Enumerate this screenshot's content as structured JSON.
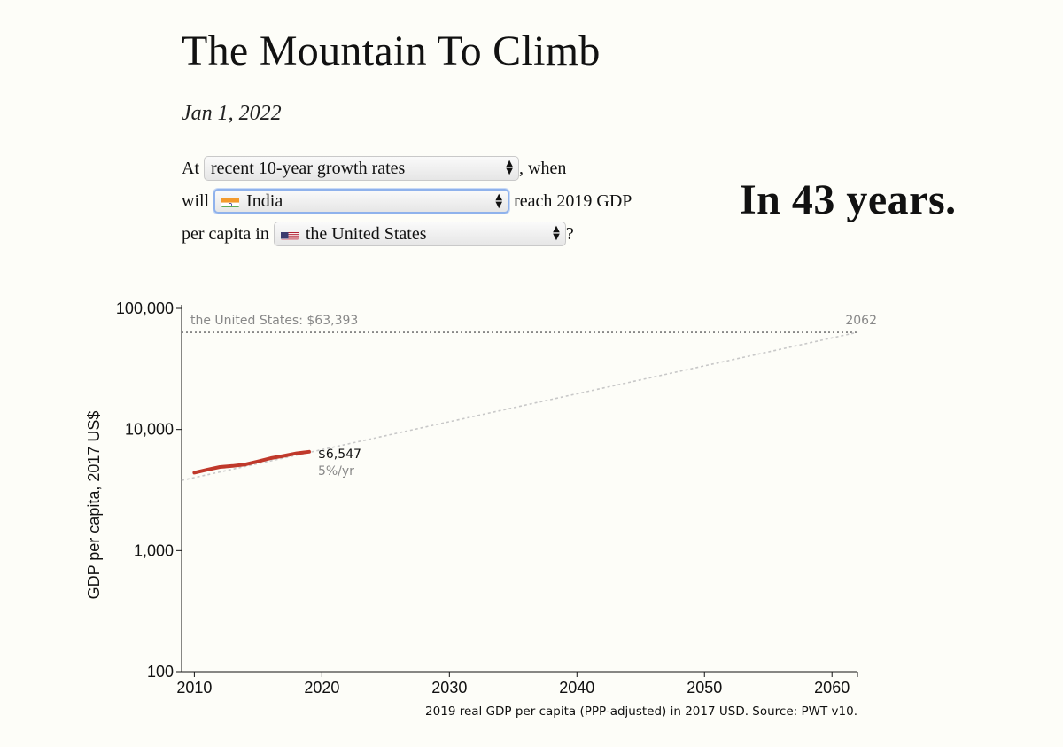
{
  "page": {
    "title": "The Mountain To Climb",
    "date": "Jan 1, 2022",
    "answer": "In 43 years."
  },
  "sentence": {
    "part1": "At",
    "part2": ", when",
    "part3": "will",
    "part4": "reach 2019 GDP",
    "part5": "per capita in",
    "part6": "?"
  },
  "controls": {
    "growth_select": {
      "value": "recent 10-year growth rates"
    },
    "country_select": {
      "value": "India",
      "flag_icon": "india-flag-icon"
    },
    "target_select": {
      "value": "the United States",
      "flag_icon": "us-flag-icon"
    }
  },
  "colors": {
    "background": "#fdfdf8",
    "history_line": "#c0392b",
    "projection_line": "#c8c8c8",
    "target_line": "#777777",
    "muted_text": "#888888",
    "focus_ring": "#8fb2ec"
  },
  "chart_data": {
    "type": "line",
    "y_scale": "log",
    "ylabel": "GDP per capita, 2017 US$",
    "xlabel": "",
    "xlim": [
      2009,
      2062
    ],
    "ylim": [
      100,
      100000
    ],
    "x_ticks": [
      2010,
      2020,
      2030,
      2040,
      2050,
      2060
    ],
    "x_tick_labels": [
      "2010",
      "2020",
      "2030",
      "2040",
      "2050",
      "2060"
    ],
    "y_ticks": [
      100,
      1000,
      10000,
      100000
    ],
    "y_tick_labels": [
      "100",
      "1,000",
      "10,000",
      "100,000"
    ],
    "series": [
      {
        "kind": "history",
        "x": [
          2010,
          2011,
          2012,
          2013,
          2014,
          2015,
          2016,
          2017,
          2018,
          2019
        ],
        "y": [
          4400,
          4650,
          4900,
          5000,
          5150,
          5450,
          5800,
          6050,
          6350,
          6547
        ]
      }
    ],
    "projection": {
      "x": [
        2009,
        2062
      ],
      "y": [
        3800,
        63393
      ]
    },
    "target_line": {
      "y": 63393,
      "label": "the United States: $63,393",
      "end_label": "2062"
    },
    "end_value_label": "$6,547",
    "growth_label": "5%/yr",
    "source": "2019 real GDP per capita (PPP-adjusted) in 2017 USD. Source: PWT v10."
  }
}
